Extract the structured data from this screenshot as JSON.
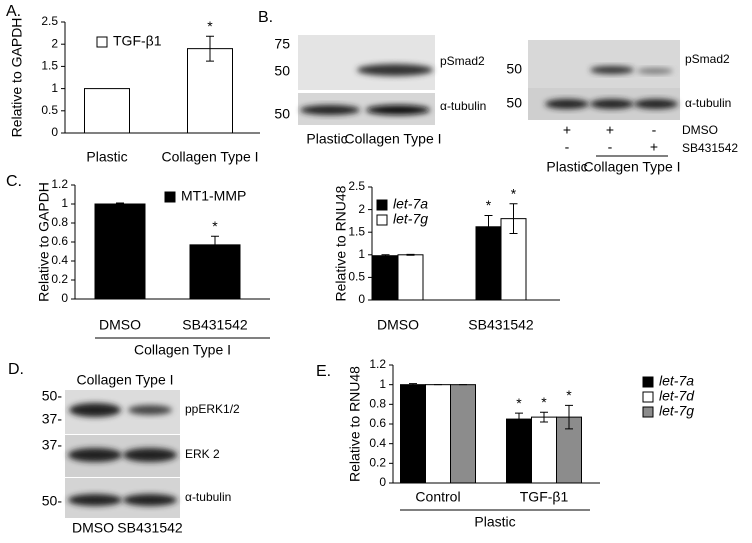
{
  "panel_labels": [
    "A.",
    "B.",
    "C.",
    "D.",
    "E."
  ],
  "chart_data": [
    {
      "type": "bar",
      "ylabel": "Relative to GAPDH",
      "categories": [
        "Plastic",
        "Collagen Type I"
      ],
      "series": [
        {
          "name": "TGF-β1",
          "color": "#ffffff",
          "values": [
            1,
            1.9
          ],
          "errors": [
            null,
            0.28
          ],
          "significance": [
            null,
            "*"
          ]
        }
      ],
      "ylim": [
        0,
        2.5
      ],
      "yticks": [
        0,
        0.5,
        1,
        1.5,
        2,
        2.5
      ]
    },
    {
      "type": "bar",
      "ylabel": "Relative to GAPDH",
      "categories": [
        "DMSO",
        "SB431542"
      ],
      "group_label": "Collagen Type I",
      "series": [
        {
          "name": "MT1-MMP",
          "color": "#000000",
          "values": [
            1.0,
            0.57
          ],
          "errors": [
            0.01,
            0.09
          ],
          "significance": [
            null,
            "*"
          ]
        }
      ],
      "ylim": [
        0,
        1.2
      ],
      "yticks": [
        0,
        0.2,
        0.4,
        0.6,
        0.8,
        1,
        1.2
      ]
    },
    {
      "type": "bar",
      "ylabel": "Relative to RNU48",
      "categories": [
        "DMSO",
        "SB431542"
      ],
      "series": [
        {
          "name": "let-7a",
          "color": "#000000",
          "values": [
            0.98,
            1.62
          ],
          "errors": [
            0.02,
            0.25
          ],
          "significance": [
            null,
            "*"
          ]
        },
        {
          "name": "let-7g",
          "color": "#ffffff",
          "values": [
            1.0,
            1.8
          ],
          "errors": [
            0.01,
            0.33
          ],
          "significance": [
            null,
            "*"
          ]
        }
      ],
      "ylim": [
        0,
        2.5
      ],
      "yticks": [
        0,
        0.5,
        1,
        1.5,
        2,
        2.5
      ]
    },
    {
      "type": "bar",
      "ylabel": "Relative to RNU48",
      "categories": [
        "Control",
        "TGF-β1"
      ],
      "group_label": "Plastic",
      "series": [
        {
          "name": "let-7a",
          "color": "#000000",
          "values": [
            1.0,
            0.65
          ],
          "errors": [
            0.01,
            0.06
          ],
          "significance": [
            null,
            "*"
          ]
        },
        {
          "name": "let-7d",
          "color": "#ffffff",
          "values": [
            1.0,
            0.67
          ],
          "errors": [
            0,
            0.05
          ],
          "significance": [
            null,
            "*"
          ]
        },
        {
          "name": "let-7g",
          "color": "#8c8c8c",
          "values": [
            1.0,
            0.67
          ],
          "errors": [
            0,
            0.12
          ],
          "significance": [
            null,
            "*"
          ]
        }
      ],
      "ylim": [
        0,
        1.2
      ],
      "yticks": [
        0,
        0.2,
        0.4,
        0.6,
        0.8,
        1,
        1.2
      ]
    }
  ],
  "blots": {
    "b_left": {
      "markers": [
        "75",
        "50",
        "50"
      ],
      "labels": [
        "pSmad2",
        "α-tubulin"
      ],
      "lanes": [
        "Plastic",
        "Collagen Type I"
      ]
    },
    "b_right": {
      "markers": [
        "50",
        "50"
      ],
      "labels": [
        "pSmad2",
        "α-tubulin"
      ],
      "rows": [
        {
          "name": "DMSO",
          "signs": [
            "+",
            "+",
            "-"
          ]
        },
        {
          "name": "SB431542",
          "signs": [
            "-",
            "-",
            "+"
          ]
        }
      ],
      "lanes": [
        "Plastic",
        "Collagen Type I"
      ]
    },
    "d": {
      "header": "Collagen Type I",
      "markers": [
        "50-",
        "37-",
        "37-",
        "50-"
      ],
      "labels": [
        "ppERK1/2",
        "ERK 2",
        "α-tubulin"
      ],
      "lanes": [
        "DMSO",
        "SB431542"
      ]
    }
  }
}
